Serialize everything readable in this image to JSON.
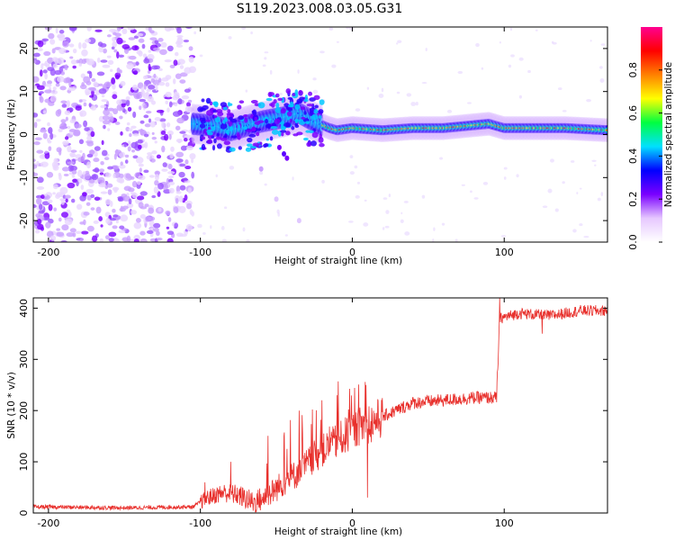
{
  "figure_title": "S119.2023.008.03.05.G31",
  "chart_data": [
    {
      "type": "heatmap",
      "title": "",
      "xlabel": "Height of straight line (km)",
      "ylabel": "Frequency (Hz)",
      "xlim": [
        -210,
        168
      ],
      "ylim": [
        -25,
        25
      ],
      "xticks": [
        -200,
        -100,
        0,
        100
      ],
      "yticks": [
        -20,
        -10,
        0,
        10,
        20
      ],
      "colorbar": {
        "label": "Normalized spectral amplitude",
        "range": [
          0,
          1
        ],
        "ticks": [
          0.0,
          0.2,
          0.4,
          0.6,
          0.8
        ],
        "tick_labels": [
          "0.0",
          "0.2",
          "0.4",
          "0.6",
          "0.8"
        ],
        "colormap": [
          "#ffffff",
          "#e6c8ff",
          "#7a00ff",
          "#0000ff",
          "#00e0ff",
          "#00ff40",
          "#ffff00",
          "#ff8000",
          "#ff0000",
          "#ff0090"
        ]
      },
      "ridge": {
        "description_points": [
          {
            "x": -105,
            "f": 2.5
          },
          {
            "x": -90,
            "f": 2
          },
          {
            "x": -80,
            "f": 1
          },
          {
            "x": -70,
            "f": 2
          },
          {
            "x": -60,
            "f": 3
          },
          {
            "x": -45,
            "f": 4
          },
          {
            "x": -35,
            "f": 5
          },
          {
            "x": -25,
            "f": 3
          },
          {
            "x": -15,
            "f": 1.5
          },
          {
            "x": -10,
            "f": 1
          },
          {
            "x": 0,
            "f": 1.5
          },
          {
            "x": 20,
            "f": 1
          },
          {
            "x": 40,
            "f": 1.5
          },
          {
            "x": 60,
            "f": 1.5
          },
          {
            "x": 75,
            "f": 2
          },
          {
            "x": 90,
            "f": 2.5
          },
          {
            "x": 100,
            "f": 1.5
          },
          {
            "x": 120,
            "f": 1.5
          },
          {
            "x": 140,
            "f": 1.5
          },
          {
            "x": 168,
            "f": 1
          }
        ]
      },
      "noise_region_x": [
        -210,
        -105
      ]
    },
    {
      "type": "line",
      "title": "",
      "xlabel": "Height of straight line (km)",
      "ylabel": "SNR (10 * v/v)",
      "xlim": [
        -210,
        168
      ],
      "ylim": [
        0,
        420
      ],
      "xticks": [
        -200,
        -100,
        0,
        100
      ],
      "yticks": [
        0,
        100,
        200,
        300,
        400
      ],
      "series": [
        {
          "color": "#e8302c",
          "envelope": [
            {
              "x": -210,
              "y": 12
            },
            {
              "x": -150,
              "y": 10
            },
            {
              "x": -105,
              "y": 12
            },
            {
              "x": -95,
              "y": 30
            },
            {
              "x": -85,
              "y": 40
            },
            {
              "x": -75,
              "y": 35
            },
            {
              "x": -65,
              "y": 20
            },
            {
              "x": -55,
              "y": 35
            },
            {
              "x": -45,
              "y": 60
            },
            {
              "x": -35,
              "y": 80
            },
            {
              "x": -25,
              "y": 110
            },
            {
              "x": -15,
              "y": 130
            },
            {
              "x": -5,
              "y": 150
            },
            {
              "x": 5,
              "y": 170
            },
            {
              "x": 15,
              "y": 180
            },
            {
              "x": 25,
              "y": 195
            },
            {
              "x": 40,
              "y": 215
            },
            {
              "x": 60,
              "y": 220
            },
            {
              "x": 80,
              "y": 225
            },
            {
              "x": 95,
              "y": 225
            },
            {
              "x": 97,
              "y": 380
            },
            {
              "x": 110,
              "y": 390
            },
            {
              "x": 130,
              "y": 385
            },
            {
              "x": 150,
              "y": 395
            },
            {
              "x": 168,
              "y": 395
            }
          ],
          "spikes": [
            {
              "x": -97,
              "y": 60
            },
            {
              "x": -80,
              "y": 100
            },
            {
              "x": -45,
              "y": 150
            },
            {
              "x": -35,
              "y": 200
            },
            {
              "x": -20,
              "y": 220
            },
            {
              "x": -10,
              "y": 230
            },
            {
              "x": 9,
              "y": 250
            },
            {
              "x": 10,
              "y": 30
            },
            {
              "x": 97,
              "y": 420
            },
            {
              "x": 125,
              "y": 350
            }
          ]
        }
      ]
    }
  ]
}
